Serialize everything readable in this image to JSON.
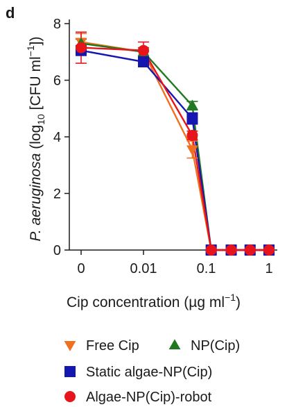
{
  "chart_data": {
    "type": "line",
    "panel_label": "d",
    "xlabel": {
      "prefix": "Cip concentration (µg ml",
      "sup": "−1",
      "suffix": ")"
    },
    "ylabel": {
      "italic": "P. aeruginosa",
      "part1": " (log",
      "sub": "10",
      "part2": " [CFU ml",
      "sup": "−1",
      "part3": "])"
    },
    "x_ticks": [
      "0",
      "0.01",
      "0.1",
      "1"
    ],
    "x": [
      "0",
      "0.01",
      "0.06",
      "0.12",
      "0.25",
      "0.5",
      "1"
    ],
    "ylim": [
      0,
      8
    ],
    "y_ticks": [
      "0",
      "2",
      "4",
      "6",
      "8"
    ],
    "grid": false,
    "legend_position": "bottom",
    "series": [
      {
        "name": "Free Cip",
        "marker": "triangle-down",
        "color": "#f07020",
        "values": [
          7.35,
          7.0,
          3.55,
          0,
          0,
          0,
          0
        ],
        "errors": [
          0.3,
          0.15,
          0.3,
          0,
          0,
          0,
          0
        ]
      },
      {
        "name": "NP(Cip)",
        "marker": "triangle-up",
        "color": "#1f7a1f",
        "values": [
          7.3,
          7.0,
          5.1,
          0,
          0,
          0,
          0
        ],
        "errors": [
          0.15,
          0.15,
          0.15,
          0,
          0,
          0,
          0
        ]
      },
      {
        "name": "Static algae-NP(Cip)",
        "marker": "square",
        "color": "#1515b0",
        "values": [
          7.05,
          6.65,
          4.65,
          0,
          0,
          0,
          0
        ],
        "errors": [
          0.15,
          0.15,
          0.2,
          0,
          0,
          0,
          0
        ]
      },
      {
        "name": "Algae-NP(Cip)-robot",
        "marker": "circle",
        "color": "#e8141c",
        "values": [
          7.15,
          7.05,
          4.05,
          0,
          0,
          0,
          0
        ],
        "errors": [
          0.55,
          0.3,
          0.15,
          0,
          0,
          0,
          0
        ]
      }
    ]
  }
}
